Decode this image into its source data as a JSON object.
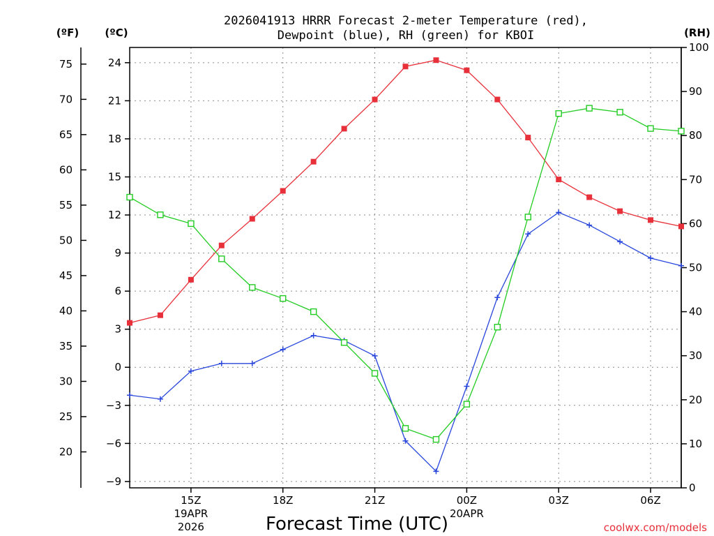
{
  "chart_data": {
    "type": "line",
    "title": "2026041913 HRRR Forecast 2-meter Temperature (red),",
    "title_line2": "Dewpoint (blue), RH (green) for KBOI",
    "xlabel": "Forecast Time (UTC)",
    "credit": "coolwx.com/models",
    "units": {
      "fahrenheit": "(ºF)",
      "celsius": "(ºC)",
      "rh": "(RH)"
    },
    "x_hours": [
      13,
      14,
      15,
      16,
      17,
      18,
      19,
      20,
      21,
      22,
      23,
      24,
      25,
      26,
      27,
      28,
      29,
      30,
      31
    ],
    "xlim": [
      13,
      31
    ],
    "x_ticks": [
      {
        "hour": 15,
        "label": "15Z",
        "sub1": "19APR",
        "sub2": "2026"
      },
      {
        "hour": 18,
        "label": "18Z"
      },
      {
        "hour": 21,
        "label": "21Z"
      },
      {
        "hour": 24,
        "label": "00Z",
        "sub1": "20APR"
      },
      {
        "hour": 27,
        "label": "03Z"
      },
      {
        "hour": 30,
        "label": "06Z"
      }
    ],
    "celsius_axis": {
      "ylim": [
        -9.5,
        25.2
      ],
      "ticks": [
        -9,
        -6,
        -3,
        0,
        3,
        6,
        9,
        12,
        15,
        18,
        21,
        24
      ]
    },
    "fahrenheit_axis": {
      "ticks": [
        20,
        25,
        30,
        35,
        40,
        45,
        50,
        55,
        60,
        65,
        70,
        75
      ]
    },
    "rh_axis": {
      "ylim": [
        0,
        100
      ],
      "ticks": [
        0,
        10,
        20,
        30,
        40,
        50,
        60,
        70,
        80,
        90,
        100
      ]
    },
    "series": [
      {
        "name": "2-meter Temperature",
        "color": "#e8303a",
        "marker": "filled-square",
        "axis": "celsius",
        "values": [
          3.5,
          4.1,
          6.9,
          9.6,
          11.7,
          13.9,
          16.2,
          18.8,
          21.1,
          23.7,
          24.2,
          23.4,
          21.1,
          18.1,
          14.8,
          13.4,
          12.3,
          11.6,
          11.1
        ]
      },
      {
        "name": "Dewpoint",
        "color": "#2846dc",
        "marker": "plus",
        "axis": "celsius",
        "values": [
          -2.2,
          -2.5,
          -0.3,
          0.3,
          0.3,
          1.4,
          2.5,
          2.1,
          0.9,
          -5.8,
          -8.2,
          -1.5,
          5.5,
          10.5,
          12.2,
          11.2,
          9.9,
          8.6,
          8.0
        ]
      },
      {
        "name": "Relative Humidity",
        "color": "#22cc22",
        "marker": "open-square",
        "axis": "rh",
        "values": [
          66.0,
          62.0,
          60.0,
          52.0,
          45.5,
          43.0,
          40.0,
          33.0,
          26.0,
          13.5,
          11.0,
          19.0,
          36.5,
          61.5,
          85.0,
          86.2,
          85.3,
          81.6,
          81.0
        ]
      }
    ]
  }
}
